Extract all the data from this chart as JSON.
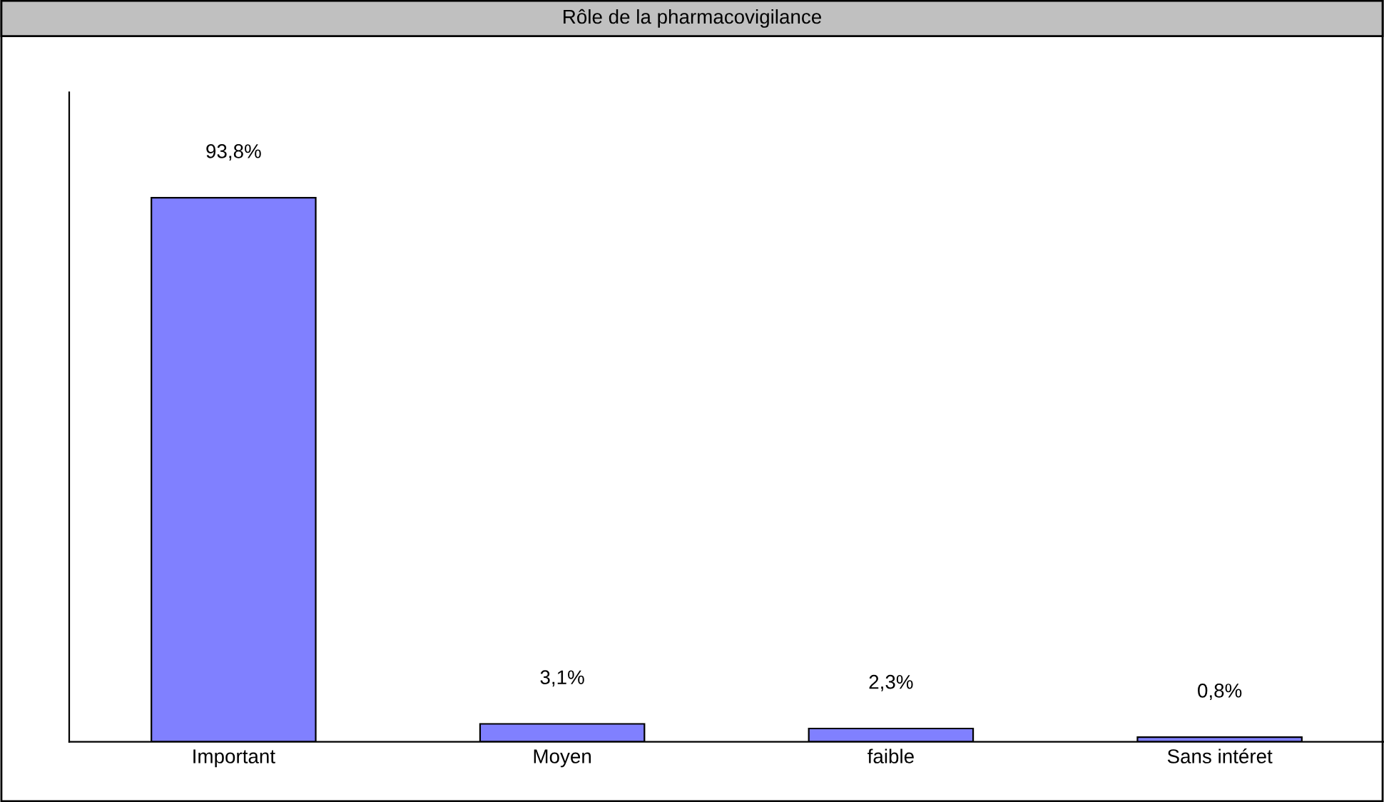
{
  "chart_data": {
    "type": "bar",
    "title": "Rôle de la pharmacovigilance",
    "categories": [
      "Important",
      "Moyen",
      "faible",
      "Sans intéret"
    ],
    "values": [
      93.8,
      3.1,
      2.3,
      0.8
    ],
    "value_labels": [
      "93,8%",
      "3,1%",
      "2,3%",
      "0,8%"
    ],
    "color": "#8080ff",
    "ylim": [
      0,
      112
    ],
    "grid": false,
    "legend": false
  }
}
